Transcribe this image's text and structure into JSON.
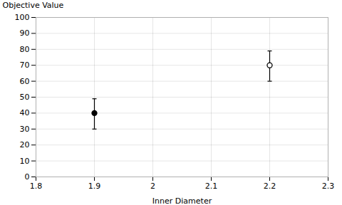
{
  "chart_data": {
    "type": "scatter",
    "xlabel": "Inner Diameter",
    "ylabel": "Objective Value",
    "series": [
      {
        "x": [
          1.9
        ],
        "values": [
          40
        ],
        "yerr_low": [
          10
        ],
        "yerr_high": [
          9
        ],
        "color": "black",
        "marker": "circle"
      },
      {
        "x": [
          2.2
        ],
        "values": [
          70
        ],
        "yerr_low": [
          10
        ],
        "yerr_high": [
          9
        ],
        "color": "black",
        "marker": "circle_open"
      }
    ],
    "xlim": [
      1.8,
      2.3
    ],
    "ylim": [
      0,
      100
    ],
    "xticks": [
      1.8,
      1.9,
      2,
      2.1,
      2.2,
      2.3
    ],
    "yticks": [
      0,
      10,
      20,
      30,
      40,
      50,
      60,
      70,
      80,
      90,
      100
    ],
    "grid": true
  }
}
